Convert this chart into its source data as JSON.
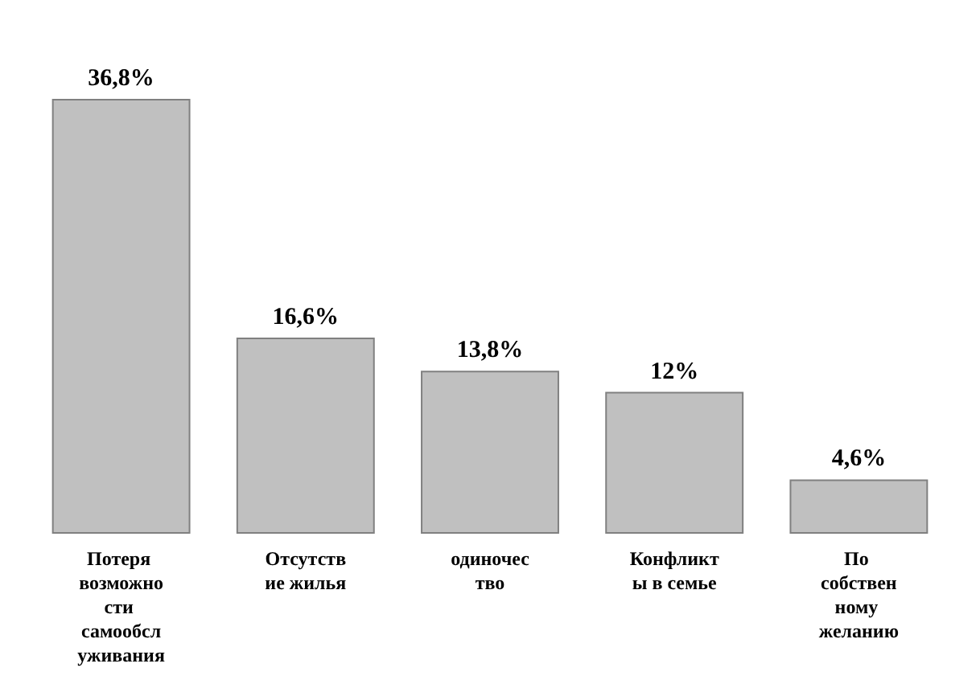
{
  "chart_data": {
    "type": "bar",
    "categories": [
      "Потеря возможности самообслуживания",
      "Отсутствие жилья",
      "одиночество",
      "Конфликты в семье",
      "По собственному желанию"
    ],
    "values": [
      36.8,
      16.6,
      13.8,
      12,
      4.6
    ],
    "value_labels": [
      "36,8%",
      "16,6%",
      "13,8%",
      "12%",
      "4,6%"
    ],
    "color": "#c0c0c0"
  }
}
